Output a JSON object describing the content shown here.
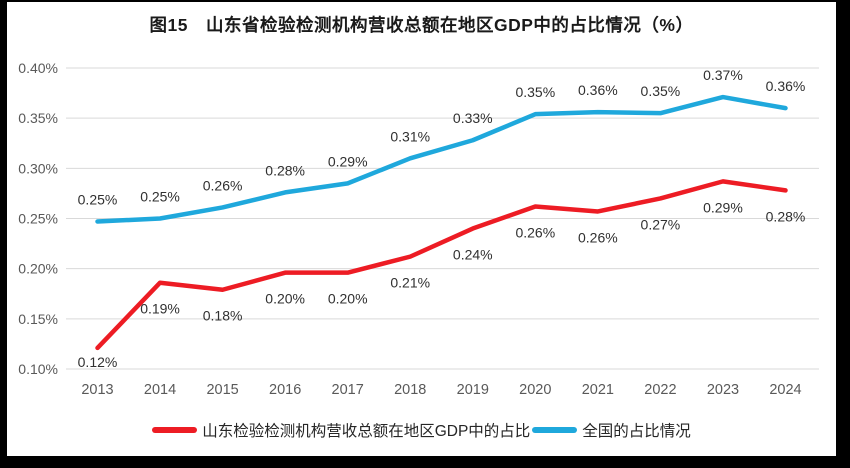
{
  "chart_data": {
    "type": "line",
    "title": "图15　山东省检验检测机构营收总额在地区GDP中的占比情况（%）",
    "categories": [
      "2013",
      "2014",
      "2015",
      "2016",
      "2017",
      "2018",
      "2019",
      "2020",
      "2021",
      "2022",
      "2023",
      "2024"
    ],
    "series": [
      {
        "id": "shandong",
        "name": "山东检验检测机构营收总额在地区GDP中的占比",
        "color": "#ed1c24",
        "label_position": "below",
        "labels": [
          "0.12%",
          "0.19%",
          "0.18%",
          "0.20%",
          "0.20%",
          "0.21%",
          "0.24%",
          "0.26%",
          "0.26%",
          "0.27%",
          "0.29%",
          "0.28%"
        ],
        "values": [
          0.12,
          0.19,
          0.18,
          0.2,
          0.2,
          0.21,
          0.24,
          0.26,
          0.26,
          0.27,
          0.29,
          0.28
        ],
        "plotted": [
          0.121,
          0.186,
          0.179,
          0.196,
          0.196,
          0.212,
          0.24,
          0.262,
          0.257,
          0.27,
          0.287,
          0.278
        ]
      },
      {
        "id": "national",
        "name": "全国的占比情况",
        "color": "#1fa8dc",
        "label_position": "above",
        "labels": [
          "0.25%",
          "0.25%",
          "0.26%",
          "0.28%",
          "0.29%",
          "0.31%",
          "0.33%",
          "0.35%",
          "0.36%",
          "0.35%",
          "0.37%",
          "0.36%"
        ],
        "values": [
          0.25,
          0.25,
          0.26,
          0.28,
          0.29,
          0.31,
          0.33,
          0.35,
          0.36,
          0.35,
          0.37,
          0.36
        ],
        "plotted": [
          0.247,
          0.25,
          0.261,
          0.276,
          0.285,
          0.31,
          0.328,
          0.354,
          0.356,
          0.355,
          0.371,
          0.36
        ]
      }
    ],
    "y_axis": {
      "min": 0.1,
      "max": 0.4,
      "ticks": [
        "0.40%",
        "0.35%",
        "0.30%",
        "0.25%",
        "0.20%",
        "0.15%",
        "0.10%"
      ],
      "grid": true
    },
    "legend_position": "bottom"
  },
  "colors": {
    "grid": "#d9d9d9",
    "axis_text": "#595959",
    "data_label": "#303030",
    "title": "#1a1a1a",
    "frame": "#000000",
    "card_bg": "#ffffff"
  }
}
